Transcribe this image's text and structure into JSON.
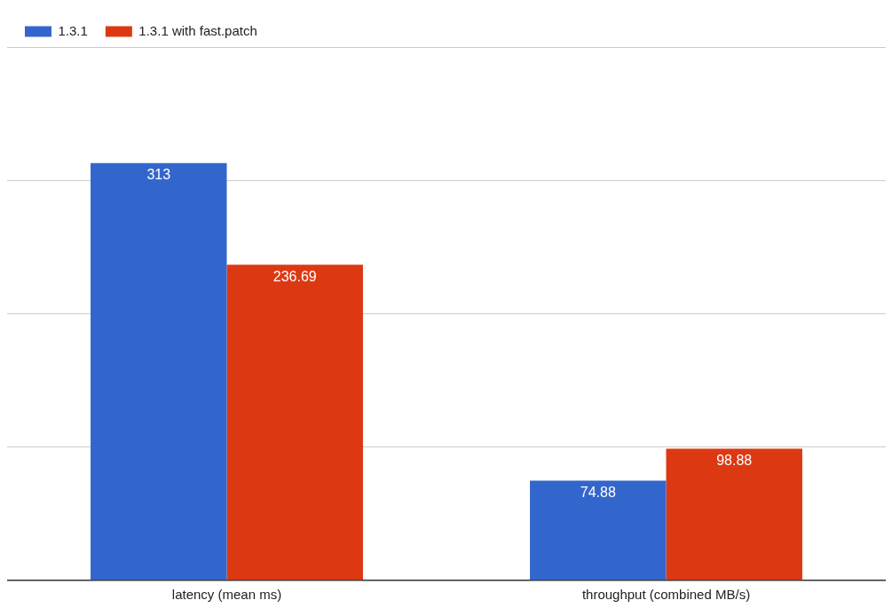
{
  "chart_data": {
    "type": "bar",
    "categories": [
      "latency (mean ms)",
      "throughput (combined MB/s)"
    ],
    "series": [
      {
        "name": "1.3.1",
        "color": "#3366cc",
        "values": [
          313,
          74.88
        ]
      },
      {
        "name": "1.3.1 with fast.patch",
        "color": "#dc3912",
        "values": [
          236.69,
          98.88
        ]
      }
    ],
    "ylim": [
      0,
      400
    ],
    "yticks": [
      {
        "value": 0,
        "label": null
      },
      {
        "value": 100,
        "label": null
      },
      {
        "value": 200,
        "label": null
      },
      {
        "value": 300,
        "label": null
      },
      {
        "value": 400,
        "label": null
      }
    ],
    "tick_labels": "x",
    "grid": "y",
    "legend": "top left",
    "data_labels": true
  }
}
